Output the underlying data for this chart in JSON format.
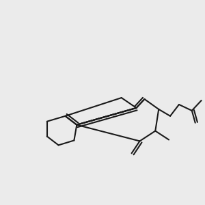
{
  "bg_color": "#ebebeb",
  "atom_colors": {
    "S": "#b8a000",
    "N": "#0000ee",
    "O": "#ee0000",
    "C": "#1a1a1a",
    "H": "#2e8b8b"
  },
  "bond_color": "#1a1a1a",
  "figsize": [
    3.0,
    3.0
  ],
  "dpi": 100
}
